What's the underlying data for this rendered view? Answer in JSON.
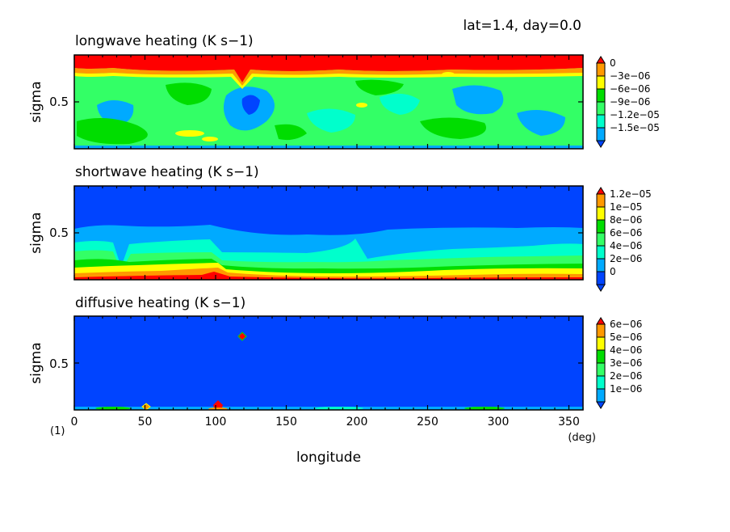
{
  "header": {
    "text": "lat=1.4, day=0.0"
  },
  "palette": {
    "red": "#ff0000",
    "orange": "#ff9900",
    "yellow": "#ffff00",
    "green": "#00dd00",
    "light_green": "#33ff66",
    "aqua": "#00ffcc",
    "sky": "#00aaff",
    "blue": "#0044ff"
  },
  "chart_data": [
    {
      "type": "heatmap",
      "title": "longwave heating (K s−1)",
      "ylabel": "sigma",
      "yticks": [
        "0.5"
      ],
      "xlim": [
        0,
        360
      ],
      "ylim": [
        1.0,
        0.0
      ],
      "legend": {
        "labels": [
          "0",
          "−3e−06",
          "−6e−06",
          "−9e−06",
          "−1.2e−05",
          "−1.5e−05"
        ],
        "levels": [
          0,
          -3e-06,
          -6e-06,
          -9e-06,
          -1.2e-05,
          -1.5e-05
        ],
        "colors": [
          "#ff0000",
          "#ff9900",
          "#ffff00",
          "#00dd00",
          "#33ff66",
          "#00ffcc",
          "#00aaff",
          "#0044ff"
        ]
      }
    },
    {
      "type": "heatmap",
      "title": "shortwave heating (K s−1)",
      "ylabel": "sigma",
      "yticks": [
        "0.5"
      ],
      "xlim": [
        0,
        360
      ],
      "ylim": [
        1.0,
        0.0
      ],
      "legend": {
        "labels": [
          "1.2e−05",
          "1e−05",
          "8e−06",
          "6e−06",
          "4e−06",
          "2e−06",
          "0"
        ],
        "levels": [
          1.2e-05,
          1e-05,
          8e-06,
          6e-06,
          4e-06,
          2e-06,
          0
        ],
        "colors": [
          "#ff0000",
          "#ff9900",
          "#ffff00",
          "#00dd00",
          "#33ff66",
          "#00ffcc",
          "#00aaff",
          "#0044ff"
        ]
      }
    },
    {
      "type": "heatmap",
      "title": "diffusive heating (K s−1)",
      "ylabel": "sigma",
      "yticks": [
        "0.5"
      ],
      "xlim": [
        0,
        360
      ],
      "ylim": [
        1.0,
        0.0
      ],
      "legend": {
        "labels": [
          "6e−06",
          "5e−06",
          "4e−06",
          "3e−06",
          "2e−06",
          "1e−06"
        ],
        "levels": [
          6e-06,
          5e-06,
          4e-06,
          3e-06,
          2e-06,
          1e-06
        ],
        "colors": [
          "#ff0000",
          "#ff9900",
          "#ffff00",
          "#00dd00",
          "#33ff66",
          "#00ffcc",
          "#00aaff",
          "#0044ff"
        ]
      }
    }
  ],
  "x_axis": {
    "label": "longitude",
    "ticks": [
      0,
      50,
      100,
      150,
      200,
      250,
      300,
      350
    ],
    "tick_labels": [
      "0",
      "50",
      "100",
      "150",
      "200",
      "250",
      "300",
      "350"
    ],
    "unit": "(deg)",
    "frame_number": "(1)"
  }
}
